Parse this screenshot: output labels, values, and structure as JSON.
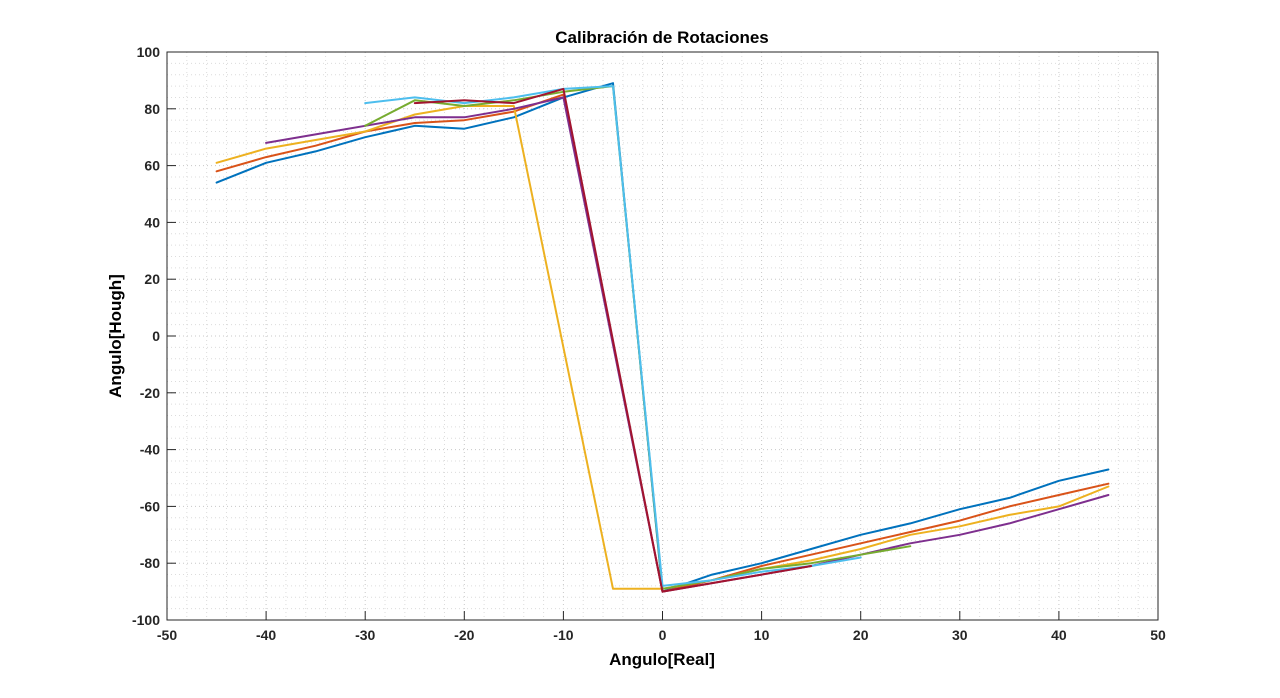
{
  "chart_data": {
    "type": "line",
    "title": "Calibración de Rotaciones",
    "xlabel": "Angulo[Real]",
    "ylabel": "Angulo[Hough]",
    "xlim": [
      -50,
      50
    ],
    "ylim": [
      -100,
      100
    ],
    "xticks": [
      -50,
      -40,
      -30,
      -20,
      -10,
      0,
      10,
      20,
      30,
      40,
      50
    ],
    "yticks": [
      -100,
      -80,
      -60,
      -40,
      -20,
      0,
      20,
      40,
      60,
      80,
      100
    ],
    "grid": "minor-dotted",
    "series": [
      {
        "color": "#0072BD",
        "x": [
          -45,
          -40,
          -35,
          -30,
          -25,
          -20,
          -15,
          -10,
          -5,
          0,
          5,
          10,
          15,
          20,
          25,
          30,
          35,
          40,
          45
        ],
        "y": [
          54,
          61,
          65,
          70,
          74,
          73,
          77,
          84,
          89,
          -90,
          -84,
          -80,
          -75,
          -70,
          -66,
          -61,
          -57,
          -51,
          -47
        ]
      },
      {
        "color": "#D95319",
        "x": [
          -45,
          -40,
          -35,
          -30,
          -25,
          -20,
          -15,
          -10,
          0,
          5,
          10,
          15,
          20,
          25,
          30,
          35,
          40,
          45
        ],
        "y": [
          58,
          63,
          67,
          72,
          75,
          76,
          79,
          85,
          -90,
          -86,
          -81,
          -77,
          -73,
          -69,
          -65,
          -60,
          -56,
          -52
        ]
      },
      {
        "color": "#EDB120",
        "x": [
          -45,
          -40,
          -35,
          -30,
          -25,
          -20,
          -15,
          -5,
          0,
          5,
          10,
          15,
          20,
          25,
          30,
          35,
          40,
          45
        ],
        "y": [
          61,
          66,
          69,
          72,
          78,
          81,
          81,
          -89,
          -89,
          -86,
          -82,
          -79,
          -75,
          -70,
          -67,
          -63,
          -60,
          -53
        ]
      },
      {
        "color": "#7E2F8E",
        "x": [
          -40,
          -35,
          -30,
          -25,
          -20,
          -15,
          -10,
          0,
          5,
          10,
          15,
          20,
          25,
          30,
          35,
          40,
          45
        ],
        "y": [
          68,
          71,
          74,
          77,
          77,
          80,
          84,
          -90,
          -87,
          -84,
          -81,
          -77,
          -73,
          -70,
          -66,
          -61,
          -56
        ]
      },
      {
        "color": "#77AC30",
        "x": [
          -30,
          -25,
          -20,
          -15,
          -10,
          -5,
          0,
          5,
          10,
          15,
          20,
          25
        ],
        "y": [
          74,
          83,
          81,
          83,
          86,
          88,
          -89,
          -86,
          -82,
          -80,
          -77,
          -74
        ]
      },
      {
        "color": "#4DBEEE",
        "x": [
          -30,
          -25,
          -20,
          -15,
          -10,
          -5,
          0,
          5,
          10,
          15,
          20
        ],
        "y": [
          82,
          84,
          82,
          84,
          87,
          88,
          -88,
          -86,
          -83,
          -81,
          -78
        ]
      },
      {
        "color": "#A2142F",
        "x": [
          -25,
          -20,
          -15,
          -10,
          0,
          5,
          10,
          15
        ],
        "y": [
          82,
          83,
          82,
          87,
          -90,
          -87,
          -84,
          -81
        ]
      }
    ]
  }
}
